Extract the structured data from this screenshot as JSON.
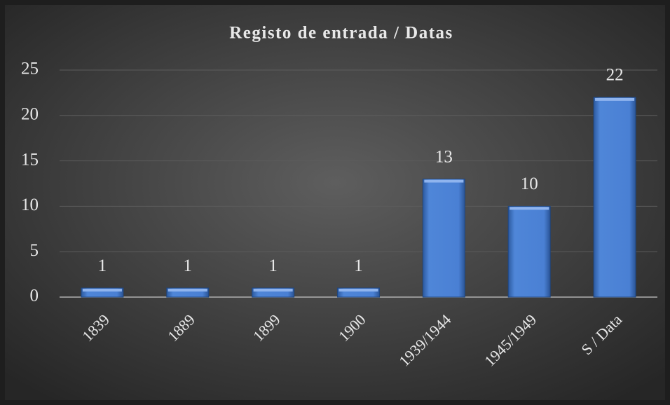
{
  "chart_data": {
    "type": "bar",
    "title": "Registo de entrada / Datas",
    "categories": [
      "1839",
      "1889",
      "1899",
      "1900",
      "1939/1944",
      "1945/1949",
      "S / Data"
    ],
    "values": [
      1,
      1,
      1,
      1,
      13,
      10,
      22
    ],
    "color": "#4a80d4",
    "ylim": [
      0,
      25
    ],
    "yticks": [
      0,
      5,
      10,
      15,
      20,
      25
    ],
    "grid": true
  }
}
